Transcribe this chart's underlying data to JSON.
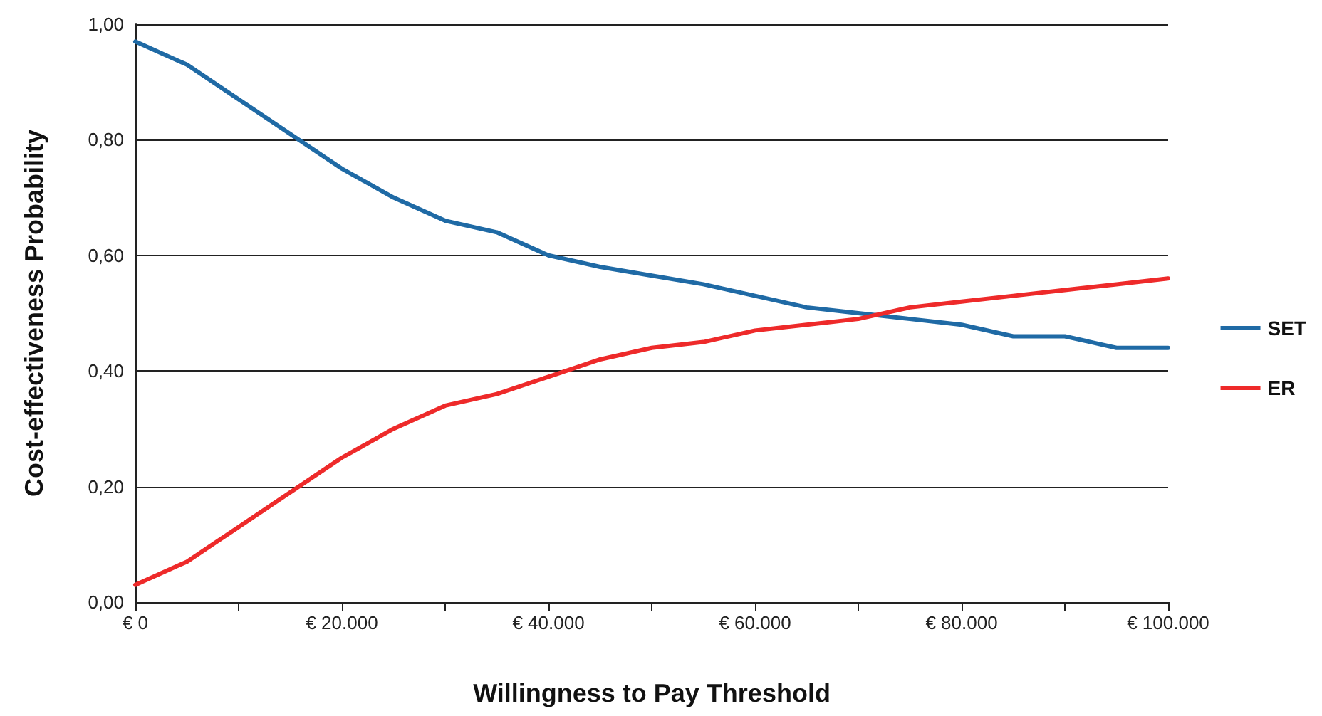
{
  "chart_data": {
    "type": "line",
    "xlabel": "Willingness to Pay Threshold",
    "ylabel": "Cost-effectiveness Probability",
    "x": [
      0,
      5000,
      10000,
      15000,
      20000,
      25000,
      30000,
      35000,
      40000,
      45000,
      50000,
      55000,
      60000,
      65000,
      70000,
      75000,
      80000,
      85000,
      90000,
      95000,
      100000
    ],
    "series": [
      {
        "name": "SET",
        "color": "#1f6aa5",
        "values": [
          0.97,
          0.93,
          0.87,
          0.81,
          0.75,
          0.7,
          0.66,
          0.64,
          0.6,
          0.58,
          0.565,
          0.55,
          0.53,
          0.51,
          0.5,
          0.49,
          0.48,
          0.46,
          0.46,
          0.44,
          0.44
        ]
      },
      {
        "name": "ER",
        "color": "#ee2a2a",
        "values": [
          0.03,
          0.07,
          0.13,
          0.19,
          0.25,
          0.3,
          0.34,
          0.36,
          0.39,
          0.42,
          0.44,
          0.45,
          0.47,
          0.48,
          0.49,
          0.51,
          0.52,
          0.53,
          0.54,
          0.55,
          0.56
        ]
      }
    ],
    "xlim": [
      0,
      100000
    ],
    "xticks": [
      {
        "value": 0,
        "label": "€ 0"
      },
      {
        "value": 10000,
        "label": null
      },
      {
        "value": 20000,
        "label": "€ 20.000"
      },
      {
        "value": 30000,
        "label": null
      },
      {
        "value": 40000,
        "label": "€ 40.000"
      },
      {
        "value": 50000,
        "label": null
      },
      {
        "value": 60000,
        "label": "€ 60.000"
      },
      {
        "value": 70000,
        "label": null
      },
      {
        "value": 80000,
        "label": "€ 80.000"
      },
      {
        "value": 90000,
        "label": null
      },
      {
        "value": 100000,
        "label": "€ 100.000"
      }
    ],
    "ylim": [
      0,
      1
    ],
    "yticks": [
      {
        "value": 0,
        "label": "0,00"
      },
      {
        "value": 0.2,
        "label": "0,20"
      },
      {
        "value": 0.4,
        "label": "0,40"
      },
      {
        "value": 0.6,
        "label": "0,60"
      },
      {
        "value": 0.8,
        "label": "0,80"
      },
      {
        "value": 1,
        "label": "1,00"
      }
    ],
    "grid": "y",
    "legend": "right",
    "marker": "none",
    "line_style": "solid"
  }
}
